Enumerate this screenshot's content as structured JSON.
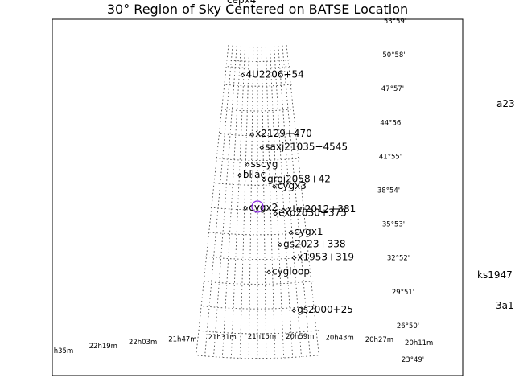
{
  "chart_data": {
    "type": "scatter",
    "title": "30° Region of Sky Centered on BATSE Location",
    "top_clipped_label": "cepx4",
    "ra_tick_labels": [
      "h35m",
      "22h19m",
      "22h03m",
      "21h47m",
      "21h31m",
      "21h15m",
      "20h59m",
      "20h43m",
      "20h27m",
      "20h11m"
    ],
    "dec_tick_labels": [
      "53°59'",
      "50°58'",
      "47°57'",
      "44°56'",
      "41°55'",
      "38°54'",
      "35°53'",
      "32°52'",
      "29°51'",
      "26°50'",
      "23°49'"
    ],
    "sources": [
      {
        "name": "4U2206+54",
        "ra": "22h07m",
        "dec": "54.5"
      },
      {
        "name": "x2129+470",
        "ra": "21h31m",
        "dec": "47.3"
      },
      {
        "name": "saxj21035+4545",
        "ra": "21h03m",
        "dec": "45.7"
      },
      {
        "name": "sscyg",
        "ra": "21h42m",
        "dec": "43.6"
      },
      {
        "name": "bllac",
        "ra": "22h02m",
        "dec": "42.3"
      },
      {
        "name": "groj2058+42",
        "ra": "20h58m",
        "dec": "41.8"
      },
      {
        "name": "cygx3",
        "ra": "20h32m",
        "dec": "40.9"
      },
      {
        "name": "xtej2012+381",
        "ra": "20h12m",
        "dec": "38.0"
      },
      {
        "name": "cygx2",
        "ra": "21h44m",
        "dec": "38.3"
      },
      {
        "name": "exo2030+375",
        "ra": "20h32m",
        "dec": "37.6"
      },
      {
        "name": "cygx1",
        "ra": "19h58m",
        "dec": "35.2"
      },
      {
        "name": "gs2023+338",
        "ra": "20h24m",
        "dec": "33.8"
      },
      {
        "name": "x1953+319",
        "ra": "19h55m",
        "dec": "32.1"
      },
      {
        "name": "cygloop",
        "ra": "20h51m",
        "dec": "30.5"
      },
      {
        "name": "gs2000+25",
        "ra": "20h03m",
        "dec": "25.7"
      }
    ],
    "outside_labels": [
      "a23",
      "ks1947",
      "3a1"
    ],
    "batse_location_marker": "circle",
    "grid": true
  }
}
